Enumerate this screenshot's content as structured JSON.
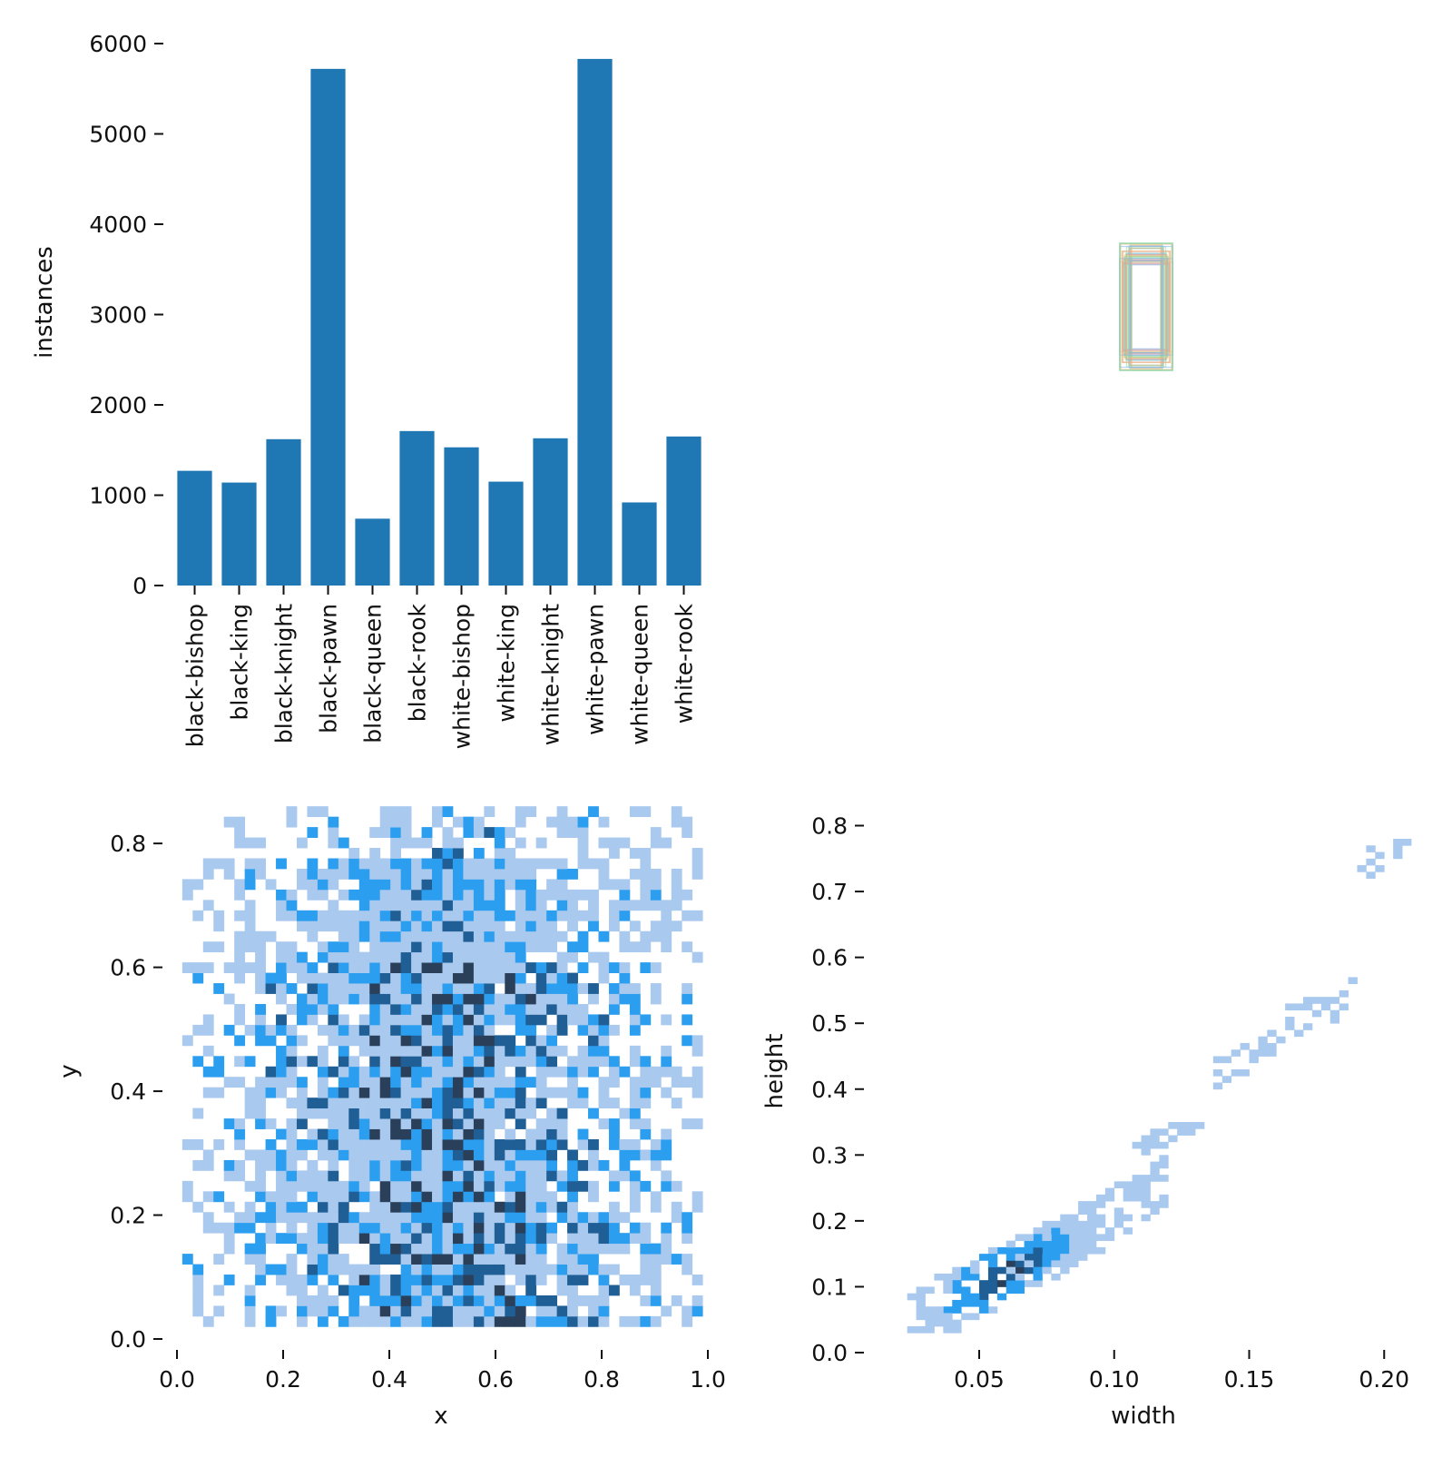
{
  "chart_data": [
    {
      "type": "bar",
      "categories": [
        "black-bishop",
        "black-king",
        "black-knight",
        "black-pawn",
        "black-queen",
        "black-rook",
        "white-bishop",
        "white-king",
        "white-knight",
        "white-pawn",
        "white-queen",
        "white-rook"
      ],
      "values": [
        1270,
        1140,
        1620,
        5720,
        740,
        1710,
        1530,
        1150,
        1630,
        5830,
        920,
        1650
      ],
      "ylabel": "instances",
      "ylim": [
        0,
        6000
      ],
      "yticks": [
        "0",
        "1000",
        "2000",
        "3000",
        "4000",
        "5000",
        "6000"
      ],
      "color": "#1f77b4"
    },
    {
      "type": "heatmap",
      "description_note": "",
      "xlabel": "x",
      "ylabel": "y",
      "xlim": [
        0,
        1.0
      ],
      "ylim": [
        0,
        0.85
      ],
      "xticks": [
        "0.0",
        "0.2",
        "0.4",
        "0.6",
        "0.8",
        "1.0"
      ],
      "yticks": [
        "0.0",
        "0.2",
        "0.4",
        "0.6",
        "0.8"
      ],
      "bins": [
        50,
        50
      ],
      "data_extent": {
        "x": [
          0.01,
          0.99
        ],
        "y": [
          0.02,
          0.86
        ]
      },
      "colors": [
        "#a9c9ee",
        "#2b9ef0",
        "#1f5f96",
        "#2a3f5a"
      ]
    },
    {
      "type": "heatmap",
      "xlabel": "width",
      "ylabel": "height",
      "xlim": [
        0.01,
        0.21
      ],
      "ylim": [
        0,
        0.82
      ],
      "xticks": [
        "0.05",
        "0.10",
        "0.15",
        "0.20"
      ],
      "xtick_values": [
        0.05,
        0.1,
        0.15,
        0.2
      ],
      "yticks": [
        "0.0",
        "0.1",
        "0.2",
        "0.3",
        "0.4",
        "0.5",
        "0.6",
        "0.7",
        "0.8"
      ],
      "colors": [
        "#a9c9ee",
        "#2b9ef0",
        "#1f5f96",
        "#2a3f5a"
      ],
      "clusters": [
        {
          "x": 0.06,
          "y": 0.12,
          "density": "high"
        },
        {
          "x": 0.09,
          "y": 0.19,
          "density": "medium"
        },
        {
          "x": 0.12,
          "y": 0.32,
          "density": "low"
        },
        {
          "x": 0.15,
          "y": 0.45,
          "density": "low"
        },
        {
          "x": 0.175,
          "y": 0.52,
          "density": "low"
        },
        {
          "x": 0.205,
          "y": 0.76,
          "density": "low"
        }
      ]
    },
    {
      "type": "other",
      "colors": [
        "#8fd9a8",
        "#f0c070",
        "#7fb3e8",
        "#e89a9a"
      ]
    }
  ]
}
